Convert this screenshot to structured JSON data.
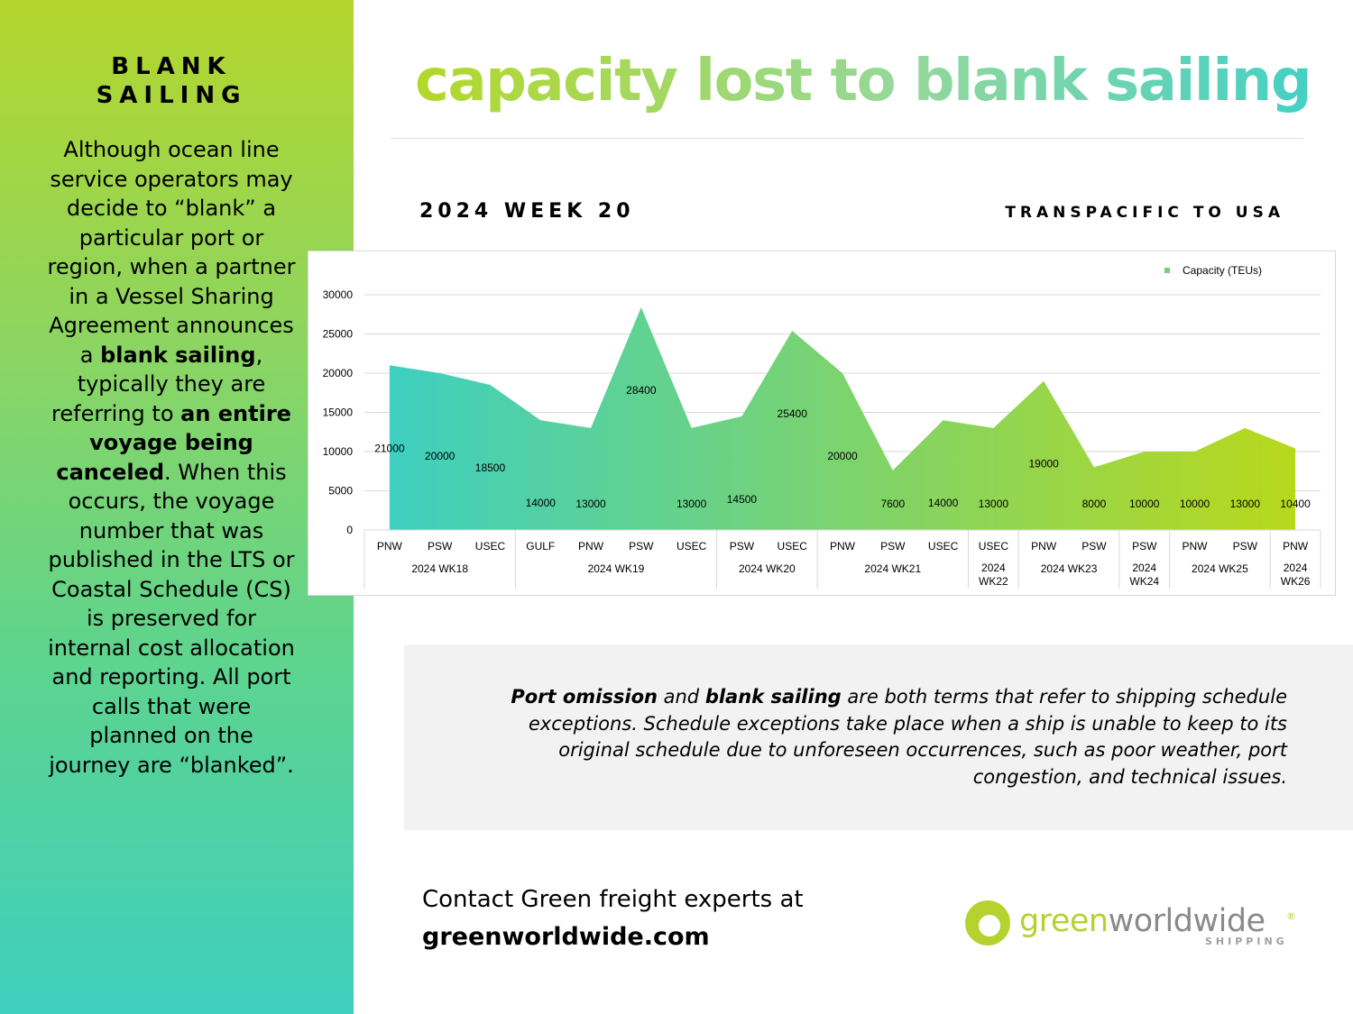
{
  "sidebar": {
    "title_line1": "BLANK",
    "title_line2": "SAILING",
    "text_1": "Although ocean line service operators may decide to “blank” a particular port or region, when a partner in a Vessel Sharing Agreement announces a ",
    "text_bold_1": "blank sailing",
    "text_2": ", typically they are referring to ",
    "text_bold_2": "an entire voyage being canceled",
    "text_3": ". When this occurs, the voyage number that was published in the LTS or Coastal Schedule (CS) is preserved for internal cost allocation and reporting. All port calls that were planned on the journey are “blanked”."
  },
  "header": {
    "title": "capacity lost to blank sailing",
    "subtitle_left": "2024 WEEK 20",
    "subtitle_right": "TRANSPACIFIC TO USA"
  },
  "chart_data": {
    "type": "area",
    "title": "",
    "xlabel": "",
    "ylabel": "",
    "ylim": [
      0,
      30000
    ],
    "yticks": [
      "0",
      "5000",
      "10000",
      "15000",
      "20000",
      "25000",
      "30000"
    ],
    "grid": true,
    "legend_position": "top-right",
    "colors": {
      "start": "#3ecfc0",
      "end": "#b9d81c",
      "grid": "#d9d9d9"
    },
    "categories": [
      "PNW",
      "PSW",
      "USEC",
      "GULF",
      "PNW",
      "PSW",
      "USEC",
      "PSW",
      "USEC",
      "PNW",
      "PSW",
      "USEC",
      "USEC",
      "PNW",
      "PSW",
      "PSW",
      "PNW",
      "PSW",
      "PNW"
    ],
    "groups": [
      {
        "label": "2024 WK18",
        "start": 0,
        "count": 3
      },
      {
        "label": "2024 WK19",
        "start": 3,
        "count": 4
      },
      {
        "label": "2024 WK20",
        "start": 7,
        "count": 2
      },
      {
        "label": "2024 WK21",
        "start": 9,
        "count": 3
      },
      {
        "label": "2024 WK22",
        "start": 12,
        "count": 1
      },
      {
        "label": "2024 WK23",
        "start": 13,
        "count": 2
      },
      {
        "label": "2024 WK24",
        "start": 15,
        "count": 1
      },
      {
        "label": "2024 WK25",
        "start": 16,
        "count": 2
      },
      {
        "label": "2024 WK26",
        "start": 18,
        "count": 1
      }
    ],
    "series": [
      {
        "name": "Capacity (TEUs)",
        "values": [
          21000,
          20000,
          18500,
          14000,
          13000,
          28400,
          13000,
          14500,
          25400,
          20000,
          7600,
          14000,
          13000,
          19000,
          8000,
          10000,
          10000,
          13000,
          10400
        ]
      }
    ]
  },
  "info": {
    "bold_1": "Port omission",
    "text_1": " and ",
    "bold_2": "blank sailing",
    "text_2": " are both terms that refer to shipping schedule exceptions. Schedule exceptions take place when a ship is unable to keep to its original schedule due to unforeseen occurrences, such as poor weather, port congestion, and technical issues."
  },
  "contact": {
    "line1": "Contact Green freight experts at",
    "line2": "greenworldwide.com"
  },
  "logo": {
    "part1": "green",
    "part2": "worldwide",
    "reg": "®",
    "sub": "SHIPPING"
  }
}
